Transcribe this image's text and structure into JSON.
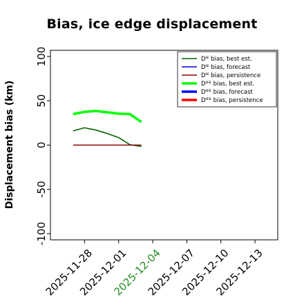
{
  "chart_data": {
    "type": "line",
    "title": "Bias, ice edge displacement",
    "xlabel": "",
    "ylabel": "Displacement bias (km)",
    "x_ticks": [
      "2025-11-28",
      "2025-12-01",
      "2025-12-04",
      "2025-12-07",
      "2025-12-10",
      "2025-12-13"
    ],
    "x_tick_colors": [
      "#000000",
      "#000000",
      "#228B22",
      "#000000",
      "#000000",
      "#000000"
    ],
    "xlim": [
      "2025-11-25",
      "2025-12-15"
    ],
    "y_ticks": [
      -100,
      -50,
      0,
      50,
      100
    ],
    "ylim": [
      -107,
      107
    ],
    "grid": false,
    "legend_placement": "top-right",
    "legend": [
      {
        "label": "Dᴵᴱ bias, best est.",
        "color": "#006400",
        "width": "thin"
      },
      {
        "label": "Dᴵᴱ bias, forecast",
        "color": "#0000cd",
        "width": "thin"
      },
      {
        "label": "Dᴵᴱ bias, persistence",
        "color": "#8b0000",
        "width": "thin"
      },
      {
        "label": "Dᴵᴱᴱ bias, best est.",
        "color": "#00ff00",
        "width": "thick"
      },
      {
        "label": "Dᴵᴱᴱ bias, forecast",
        "color": "#0000ff",
        "width": "thick"
      },
      {
        "label": "Dᴵᴱᴱ bias, persistence",
        "color": "#ff0000",
        "width": "thick"
      }
    ],
    "series": [
      {
        "name": "Dᴵᴱ bias, best est.",
        "color": "#006400",
        "width": "thin",
        "x": [
          "2025-11-27",
          "2025-11-28",
          "2025-11-29",
          "2025-11-30",
          "2025-12-01",
          "2025-12-02",
          "2025-12-03"
        ],
        "y": [
          16,
          19.5,
          17,
          13,
          8.5,
          0.5,
          -1.5
        ]
      },
      {
        "name": "Dᴵᴱ bias, persistence",
        "color": "#8b0000",
        "width": "thin",
        "x": [
          "2025-11-27",
          "2025-12-03"
        ],
        "y": [
          0,
          0
        ]
      },
      {
        "name": "Dᴵᴱᴱ bias, best est.",
        "color": "#00ff00",
        "width": "thick",
        "x": [
          "2025-11-27",
          "2025-11-28",
          "2025-11-29",
          "2025-11-30",
          "2025-12-01",
          "2025-12-02",
          "2025-12-03"
        ],
        "y": [
          35,
          37.5,
          38.5,
          37,
          35.5,
          35,
          26
        ]
      }
    ]
  }
}
